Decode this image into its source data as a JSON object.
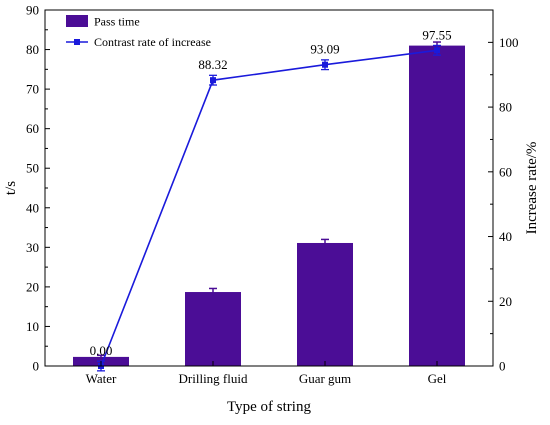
{
  "chart_data": {
    "type": "bar+line",
    "categories": [
      "Water",
      "Drilling fluid",
      "Guar gum",
      "Gel"
    ],
    "xlabel": "Type of string",
    "ylabel_left": "t/s",
    "ylabel_right": "Increase rate/%",
    "ylim_left": [
      0,
      90
    ],
    "ylim_right": [
      0,
      110
    ],
    "yticks_left": [
      "0",
      "10",
      "20",
      "30",
      "40",
      "50",
      "60",
      "70",
      "80",
      "90"
    ],
    "yticks_right": [
      "0",
      "20",
      "40",
      "60",
      "80",
      "100"
    ],
    "grid": false,
    "legend_position": "top-left",
    "series": [
      {
        "name": "Pass time",
        "type": "bar",
        "axis": "left",
        "values": [
          2.3,
          18.7,
          31.1,
          81.0
        ],
        "errors": [
          0.4,
          0.9,
          0.9,
          0.9
        ]
      },
      {
        "name": "Contrast rate of increase",
        "type": "line",
        "axis": "right",
        "values": [
          0.0,
          88.32,
          93.09,
          97.55
        ],
        "errors": [
          1.5,
          1.5,
          1.5,
          1.5
        ],
        "labels": [
          "0.00",
          "88.32",
          "93.09",
          "97.55"
        ]
      }
    ],
    "colors": {
      "bar": "#4b0d96",
      "line": "#1a1adb"
    }
  }
}
